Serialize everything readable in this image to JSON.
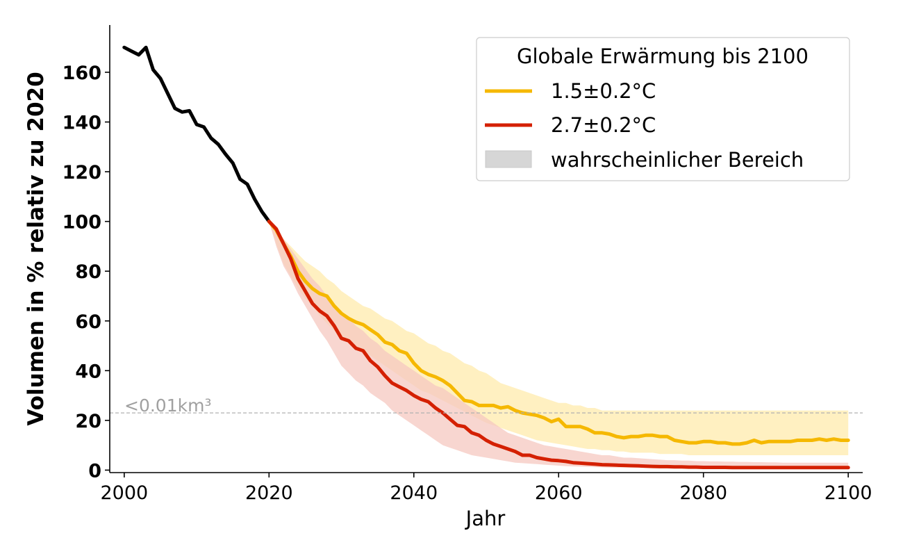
{
  "chart_data": {
    "type": "line",
    "xlabel": "Jahr",
    "ylabel": "Volumen in % relativ zu 2020",
    "xlim": [
      1998,
      2102
    ],
    "ylim": [
      -1,
      179
    ],
    "x_ticks": [
      2000,
      2020,
      2040,
      2060,
      2080,
      2100
    ],
    "y_ticks": [
      0,
      20,
      40,
      60,
      80,
      100,
      120,
      140,
      160
    ],
    "grid": false,
    "legend": {
      "title": "Globale Erwärmung bis 2100",
      "placement": "top-right",
      "entries": [
        "1.5±0.2°C",
        "2.7±0.2°C",
        "wahrscheinlicher Bereich"
      ]
    },
    "reference_line": {
      "y": 23,
      "label": "<0.01km³",
      "color": "#b0b0b0"
    },
    "series": [
      {
        "role": "observed",
        "color": "#000000",
        "x": [
          2000,
          2001,
          2002,
          2003,
          2004,
          2005,
          2006,
          2007,
          2008,
          2009,
          2010,
          2011,
          2012,
          2013,
          2014,
          2015,
          2016,
          2017,
          2018,
          2019,
          2020
        ],
        "y": [
          170,
          168.5,
          167,
          170,
          161,
          157.5,
          151.5,
          145.5,
          144,
          144.5,
          139,
          138,
          133.5,
          131,
          127,
          123.5,
          117,
          115,
          109,
          104,
          100
        ]
      },
      {
        "name": "1.5±0.2°C",
        "color": "#f5b800",
        "band_color": "#ffeeba",
        "x": [
          2020,
          2021,
          2022,
          2023,
          2024,
          2025,
          2026,
          2027,
          2028,
          2029,
          2030,
          2031,
          2032,
          2033,
          2034,
          2035,
          2036,
          2037,
          2038,
          2039,
          2040,
          2041,
          2042,
          2043,
          2044,
          2045,
          2046,
          2047,
          2048,
          2049,
          2050,
          2051,
          2052,
          2053,
          2054,
          2055,
          2056,
          2057,
          2058,
          2059,
          2060,
          2061,
          2062,
          2063,
          2064,
          2065,
          2066,
          2067,
          2068,
          2069,
          2070,
          2071,
          2072,
          2073,
          2074,
          2075,
          2076,
          2077,
          2078,
          2079,
          2080,
          2081,
          2082,
          2083,
          2084,
          2085,
          2086,
          2087,
          2088,
          2089,
          2090,
          2091,
          2092,
          2093,
          2094,
          2095,
          2096,
          2097,
          2098,
          2099,
          2100
        ],
        "y": [
          100,
          96.5,
          91,
          86,
          80,
          76,
          73,
          71,
          70,
          66,
          63,
          61,
          59.5,
          58.5,
          56.5,
          54.5,
          51.5,
          50.5,
          48,
          47,
          43,
          40,
          38.5,
          37.5,
          36,
          34,
          31,
          28,
          27.5,
          26,
          26,
          26,
          25,
          25.5,
          24,
          23,
          22.5,
          22,
          21,
          19.5,
          20.5,
          17.5,
          17.5,
          17.5,
          16.5,
          15,
          15,
          14.5,
          13.5,
          13,
          13.5,
          13.5,
          14,
          14,
          13.5,
          13.5,
          12,
          11.5,
          11,
          11,
          11.5,
          11.5,
          11,
          11,
          10.5,
          10.5,
          11,
          12,
          11,
          11.5,
          11.5,
          11.5,
          11.5,
          12,
          12,
          12,
          12.5,
          12,
          12.5,
          12,
          12
        ],
        "lower": [
          100,
          91,
          83,
          78,
          73,
          69,
          66,
          62,
          59,
          56,
          54,
          52,
          50,
          48,
          46,
          44,
          42,
          40,
          38,
          36,
          34,
          32,
          31,
          29.5,
          28,
          26.5,
          25,
          23.5,
          22,
          20.5,
          19,
          18,
          17,
          16,
          15,
          14,
          13,
          12,
          11.5,
          11,
          10.5,
          10,
          9.5,
          9,
          8.5,
          8.5,
          8,
          8,
          7.5,
          7.5,
          7,
          7,
          7,
          7,
          6.5,
          6.5,
          6.5,
          6.5,
          6,
          6,
          6,
          6,
          6,
          6,
          6,
          6,
          6,
          6,
          6,
          6,
          6,
          6,
          6,
          6,
          6,
          6,
          6,
          6,
          6,
          6,
          6
        ],
        "upper": [
          100,
          97,
          93,
          90,
          87,
          84,
          82,
          80,
          77,
          75,
          72,
          70,
          68,
          66,
          65,
          63,
          61,
          60,
          58,
          56,
          55,
          53,
          51,
          50,
          48,
          47,
          45,
          43,
          42,
          40,
          39,
          37,
          35,
          34,
          33,
          32,
          31,
          30,
          29,
          28,
          27,
          27,
          26,
          26,
          25,
          25,
          24,
          24,
          24,
          24,
          24,
          24,
          24,
          24,
          24,
          24,
          24,
          24,
          24,
          24,
          24,
          24,
          24,
          24,
          24,
          24,
          24,
          24,
          24,
          24,
          24,
          24,
          24,
          24,
          24,
          24,
          24,
          24,
          24,
          24,
          24
        ]
      },
      {
        "name": "2.7±0.2°C",
        "color": "#d42000",
        "band_color": "#f5c8c0",
        "x": [
          2020,
          2021,
          2022,
          2023,
          2024,
          2025,
          2026,
          2027,
          2028,
          2029,
          2030,
          2031,
          2032,
          2033,
          2034,
          2035,
          2036,
          2037,
          2038,
          2039,
          2040,
          2041,
          2042,
          2043,
          2044,
          2045,
          2046,
          2047,
          2048,
          2049,
          2050,
          2051,
          2052,
          2053,
          2054,
          2055,
          2056,
          2057,
          2058,
          2059,
          2060,
          2061,
          2062,
          2063,
          2064,
          2065,
          2066,
          2067,
          2068,
          2069,
          2070,
          2071,
          2072,
          2073,
          2074,
          2075,
          2076,
          2077,
          2078,
          2079,
          2080,
          2081,
          2082,
          2083,
          2084,
          2085,
          2086,
          2087,
          2088,
          2089,
          2090,
          2091,
          2092,
          2093,
          2094,
          2095,
          2096,
          2097,
          2098,
          2099,
          2100
        ],
        "y": [
          100,
          97,
          91,
          85,
          77,
          72,
          67,
          64,
          62,
          58,
          53,
          52,
          49,
          48,
          44,
          41.5,
          38,
          35,
          33.5,
          32,
          30,
          28.5,
          27.5,
          25,
          23,
          20.5,
          18,
          17.5,
          15,
          14,
          12,
          10.5,
          9.5,
          8.5,
          7.5,
          6,
          6,
          5,
          4.5,
          4,
          3.8,
          3.5,
          3,
          2.8,
          2.6,
          2.4,
          2.2,
          2.1,
          2,
          1.9,
          1.8,
          1.7,
          1.6,
          1.5,
          1.4,
          1.4,
          1.3,
          1.3,
          1.2,
          1.2,
          1.1,
          1.1,
          1.1,
          1.1,
          1,
          1,
          1,
          1,
          1,
          1,
          1,
          1,
          1,
          1,
          1,
          1,
          1,
          1,
          1,
          1,
          1
        ],
        "lower": [
          100,
          90,
          82,
          77,
          71,
          66,
          61,
          56,
          52,
          47,
          42,
          39,
          36,
          34,
          31,
          29,
          27,
          24,
          22,
          20,
          18,
          16,
          14,
          12,
          10,
          9,
          8,
          7,
          6,
          5.5,
          5,
          4.5,
          4,
          3.5,
          3,
          2.8,
          2.6,
          2.4,
          2.2,
          2,
          1.8,
          1.6,
          1.5,
          1.4,
          1.3,
          1.2,
          1.1,
          1,
          1,
          1,
          1,
          1,
          1,
          1,
          1,
          1,
          1,
          1,
          1,
          1,
          1,
          1,
          1,
          1,
          1,
          1,
          1,
          1,
          1,
          1,
          1,
          1,
          1,
          1,
          1,
          1,
          1,
          1,
          1,
          1,
          1
        ],
        "upper": [
          100,
          97,
          93,
          89,
          85,
          81,
          77,
          74,
          70,
          67,
          64,
          61,
          58,
          56,
          53,
          51,
          48,
          46,
          44,
          42,
          40,
          38,
          36,
          34,
          33,
          31,
          29,
          27,
          25,
          23,
          21,
          19,
          17,
          15,
          14,
          13,
          12,
          11,
          10,
          9.5,
          9,
          8.5,
          8,
          7.5,
          7,
          6.5,
          6,
          6,
          5.5,
          5,
          5,
          4.8,
          4.6,
          4.4,
          4.2,
          4,
          4,
          3.8,
          3.8,
          3.6,
          3.6,
          3.5,
          3.5,
          3.4,
          3.4,
          3.3,
          3.3,
          3.2,
          3.2,
          3.1,
          3.1,
          3,
          3,
          3,
          3,
          3,
          3,
          3,
          3,
          3,
          3
        ]
      }
    ]
  }
}
